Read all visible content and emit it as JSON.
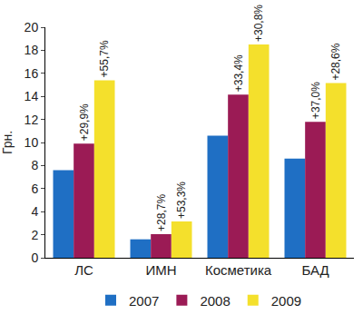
{
  "chart_data": {
    "type": "bar",
    "y_label": "Грн.",
    "categories": [
      "ЛС",
      "ИМН",
      "Косметика",
      "БАД"
    ],
    "series": [
      {
        "name": "2007",
        "color": "#1f6fc4",
        "values": [
          7.6,
          1.6,
          10.6,
          8.6
        ]
      },
      {
        "name": "2008",
        "color": "#9b1b55",
        "values": [
          9.9,
          2.05,
          14.15,
          11.8
        ],
        "annotations": [
          "+29,9%",
          "+28,7%",
          "+33,4%",
          "+37,0%"
        ]
      },
      {
        "name": "2009",
        "color": "#f4e02c",
        "values": [
          15.4,
          3.15,
          18.5,
          15.15
        ],
        "annotations": [
          "+55,7%",
          "+53,3%",
          "+30,8%",
          "+28,6%"
        ]
      }
    ],
    "ylim": [
      0,
      20
    ],
    "yticks": [
      0,
      2,
      4,
      6,
      8,
      10,
      12,
      14,
      16,
      18,
      20
    ],
    "grid": false,
    "legend": "bottom"
  }
}
